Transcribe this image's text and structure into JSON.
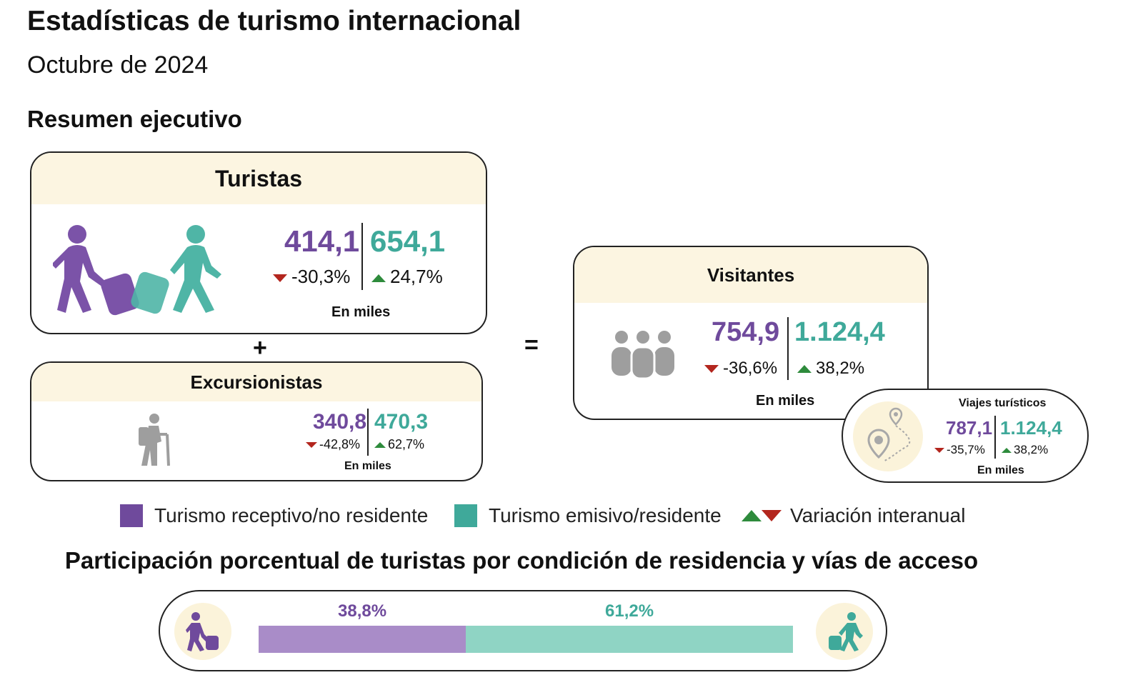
{
  "header": {
    "title": "Estadísticas de turismo internacional",
    "period": "Octubre de 2024",
    "section": "Resumen ejecutivo"
  },
  "colors": {
    "receptive": "#6f4a9c",
    "emissive": "#3fa99a",
    "header_fill": "#fcf5e1",
    "down": "#b3261e",
    "up": "#2e8b3c"
  },
  "turistas": {
    "title": "Turistas",
    "receptive_value": "414,1",
    "receptive_change": "-30,3%",
    "emissive_value": "654,1",
    "emissive_change": "24,7%",
    "units": "En miles"
  },
  "excursionistas": {
    "title": "Excursionistas",
    "receptive_value": "340,8",
    "receptive_change": "-42,8%",
    "emissive_value": "470,3",
    "emissive_change": "62,7%",
    "units": "En miles"
  },
  "visitantes": {
    "title": "Visitantes",
    "receptive_value": "754,9",
    "receptive_change": "-36,6%",
    "emissive_value": "1.124,4",
    "emissive_change": "38,2%",
    "units": "En miles"
  },
  "viajes": {
    "title": "Viajes turísticos",
    "receptive_value": "787,1",
    "receptive_change": "-35,7%",
    "emissive_value": "1.124,4",
    "emissive_change": "38,2%",
    "units": "En miles"
  },
  "operators": {
    "plus": "+",
    "equals": "="
  },
  "legend": {
    "receptive": "Turismo receptivo/no residente",
    "emissive": "Turismo emisivo/residente",
    "variation": "Variación interanual"
  },
  "participation": {
    "title": "Participación porcentual de turistas por condición de residencia y vías de acceso",
    "receptive_label": "38,8%",
    "emissive_label": "61,2%",
    "receptive_share": 38.8,
    "emissive_share": 61.2
  },
  "icons": [
    "traveler-icon",
    "hiker-icon",
    "group-icon",
    "route-pin-icon"
  ]
}
